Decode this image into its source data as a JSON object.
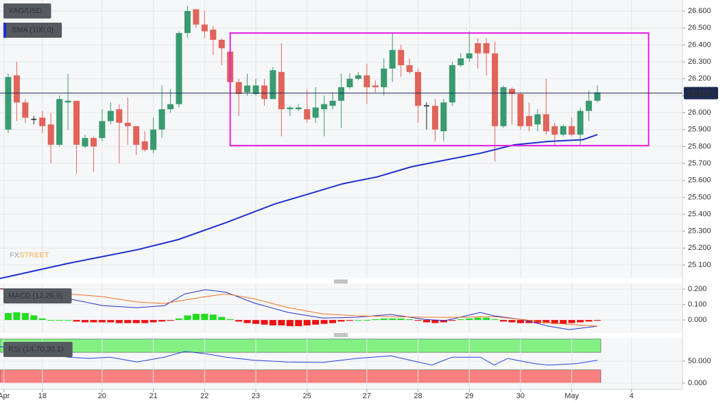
{
  "chart_data": [
    {
      "type": "candlestick",
      "series": [
        {
          "name": "XAG/USD",
          "up_color": "#3a9a70",
          "down_color": "#e0645a",
          "flat_color": "#222222",
          "open": [
            25.9,
            26.22,
            26.06,
            25.96,
            25.97,
            25.93,
            25.81,
            26.06,
            26.07,
            25.8,
            25.85,
            25.85,
            25.95,
            26.02,
            25.94,
            25.92,
            25.83,
            25.78,
            25.9,
            26.02,
            26.05,
            26.47,
            26.61,
            26.52,
            26.49,
            26.43,
            26.36,
            26.18,
            26.12,
            26.11,
            26.16,
            26.08,
            26.24,
            26.02,
            26.02,
            26.02,
            25.97,
            26.02,
            26.04,
            26.07,
            26.15,
            26.2,
            26.22,
            26.16,
            26.15,
            26.26,
            26.37,
            26.28,
            26.24,
            26.04,
            26.04,
            25.89,
            26.06,
            26.28,
            26.32,
            26.41,
            26.41,
            26.35,
            25.92,
            26.14,
            26.11,
            25.98,
            25.93,
            25.99,
            25.92,
            25.87,
            25.92,
            25.87,
            26.01,
            26.07
          ],
          "high": [
            26.23,
            26.3,
            26.08,
            25.98,
            26.01,
            26.0,
            26.1,
            26.23,
            26.07,
            25.87,
            25.86,
            26.02,
            26.06,
            26.05,
            26.09,
            25.92,
            25.89,
            25.97,
            26.16,
            26.14,
            26.48,
            26.63,
            26.61,
            26.6,
            26.51,
            26.44,
            26.37,
            26.2,
            26.23,
            26.2,
            26.2,
            26.27,
            26.41,
            26.04,
            26.05,
            26.14,
            26.15,
            26.1,
            26.12,
            26.23,
            26.23,
            26.24,
            26.29,
            26.19,
            26.32,
            26.47,
            26.4,
            26.32,
            26.26,
            26.06,
            26.08,
            26.08,
            26.3,
            26.35,
            26.48,
            26.44,
            26.44,
            26.42,
            26.16,
            26.15,
            26.12,
            26.06,
            26.02,
            26.2,
            25.94,
            25.93,
            25.97,
            26.03,
            26.13,
            26.16
          ],
          "low": [
            25.88,
            25.95,
            25.94,
            25.93,
            25.88,
            25.7,
            25.8,
            25.9,
            25.64,
            25.79,
            25.65,
            25.83,
            25.93,
            25.7,
            25.81,
            25.75,
            25.77,
            25.76,
            25.85,
            26.0,
            26.03,
            26.44,
            26.5,
            26.44,
            26.34,
            26.28,
            26.12,
            25.98,
            26.1,
            26.1,
            26.04,
            26.08,
            25.86,
            25.98,
            26.01,
            25.94,
            25.94,
            25.86,
            26.02,
            25.91,
            26.14,
            26.19,
            26.05,
            26.12,
            26.1,
            26.18,
            26.21,
            26.23,
            25.94,
            25.9,
            25.83,
            25.83,
            26.04,
            26.27,
            26.3,
            26.26,
            26.22,
            25.71,
            25.91,
            25.93,
            25.9,
            25.89,
            25.89,
            25.87,
            25.81,
            25.86,
            25.86,
            25.81,
            25.95,
            26.06
          ],
          "close": [
            26.21,
            26.06,
            25.97,
            25.96,
            25.92,
            25.81,
            26.08,
            26.07,
            25.81,
            25.85,
            25.8,
            25.95,
            26.01,
            25.94,
            25.92,
            25.81,
            25.78,
            25.9,
            26.02,
            26.05,
            26.47,
            26.6,
            26.52,
            26.48,
            26.43,
            26.38,
            26.18,
            26.11,
            26.16,
            26.16,
            26.08,
            26.25,
            26.02,
            26.03,
            26.03,
            25.96,
            26.03,
            26.05,
            26.07,
            26.15,
            26.2,
            26.22,
            26.15,
            26.15,
            26.26,
            26.37,
            26.28,
            26.24,
            26.04,
            26.04,
            25.9,
            26.06,
            26.28,
            26.32,
            26.35,
            26.35,
            26.35,
            25.92,
            26.15,
            26.11,
            25.92,
            25.92,
            25.99,
            25.89,
            25.87,
            25.92,
            25.87,
            26.01,
            26.07,
            26.12
          ]
        },
        {
          "type": "line",
          "name": "SMA (100,0)",
          "color": "#1c2fd0",
          "x": [
            -0.96,
            7.07,
            15.1,
            19.9,
            25.5,
            31.2,
            35.2,
            39.2,
            43.2,
            47.2,
            51.2,
            55.3,
            59.3,
            63.3,
            67.3,
            69
          ],
          "values": [
            25.02,
            25.11,
            25.19,
            25.25,
            25.35,
            25.46,
            25.52,
            25.58,
            25.62,
            25.68,
            25.72,
            25.76,
            25.81,
            25.83,
            25.84,
            25.87
          ]
        }
      ],
      "annotations": [
        {
          "type": "rect",
          "x": [
            26.0,
            75.0
          ],
          "y": [
            25.805,
            26.47
          ],
          "color": "#e31ee3"
        }
      ],
      "last_price": {
        "value": 26.115,
        "color": "#1e2b4f"
      },
      "watermark": [
        "FX",
        "STREET"
      ],
      "xlim": [
        -0.96,
        78.96
      ],
      "ylim": [
        25.023,
        26.665
      ],
      "yticks": [
        {
          "value": 25.1,
          "label": "25.100"
        },
        {
          "value": 25.2,
          "label": "25.200"
        },
        {
          "value": 25.3,
          "label": "25.300"
        },
        {
          "value": 25.4,
          "label": "25.400"
        },
        {
          "value": 25.5,
          "label": "25.500"
        },
        {
          "value": 25.6,
          "label": "25.600"
        },
        {
          "value": 25.7,
          "label": "25.700"
        },
        {
          "value": 25.8,
          "label": "25.800"
        },
        {
          "value": 25.9,
          "label": "25.900"
        },
        {
          "value": 26.0,
          "label": "26.000"
        },
        {
          "value": 26.1,
          "label": "26.100"
        },
        {
          "value": 26.2,
          "label": "26.200"
        },
        {
          "value": 26.3,
          "label": "26.300"
        },
        {
          "value": 26.4,
          "label": "26.400"
        },
        {
          "value": 26.5,
          "label": "26.500"
        },
        {
          "value": 26.6,
          "label": "26.600"
        }
      ]
    },
    {
      "type": "macd",
      "title": "MACD (12,26,9)",
      "histogram": {
        "up_color": "#22dd22",
        "down_color": "#ee1111",
        "values": [
          0.045,
          0.05,
          0.045,
          0.03,
          0.01,
          0.0,
          0.0,
          0.0,
          -0.01,
          -0.015,
          -0.015,
          -0.015,
          -0.015,
          -0.02,
          -0.02,
          -0.02,
          -0.02,
          -0.015,
          -0.01,
          -0.005,
          0.01,
          0.03,
          0.04,
          0.04,
          0.035,
          0.02,
          0.005,
          -0.01,
          -0.02,
          -0.025,
          -0.03,
          -0.035,
          -0.035,
          -0.04,
          -0.04,
          -0.035,
          -0.03,
          -0.025,
          -0.02,
          -0.01,
          -0.005,
          0.0,
          0.0,
          0.005,
          0.01,
          0.01,
          0.01,
          0.005,
          -0.005,
          -0.015,
          -0.02,
          -0.015,
          -0.005,
          0.005,
          0.01,
          0.015,
          0.015,
          0.005,
          -0.01,
          -0.015,
          -0.02,
          -0.02,
          -0.02,
          -0.02,
          -0.025,
          -0.025,
          -0.02,
          -0.015,
          -0.01,
          -0.005
        ]
      },
      "lines": [
        {
          "color": "#2233cc",
          "x": [
            -0.96,
            3.86,
            7.07,
            11.1,
            15.1,
            18.3,
            20.7,
            23.1,
            25.5,
            28.8,
            32.8,
            36.8,
            40.8,
            44.8,
            48.8,
            51.2,
            55.3,
            56.9,
            60.1,
            63.3,
            65.7,
            69
          ],
          "values": [
            0.204,
            0.18,
            0.138,
            0.093,
            0.08,
            0.093,
            0.169,
            0.196,
            0.18,
            0.11,
            0.049,
            0.013,
            0.018,
            0.036,
            0.004,
            -0.004,
            0.049,
            0.027,
            0.004,
            -0.04,
            -0.062,
            -0.04
          ]
        },
        {
          "color": "#f07020",
          "x": [
            -0.96,
            7.07,
            11.1,
            15.1,
            18.3,
            23.1,
            25.5,
            28.8,
            32.8,
            36.8,
            40.8,
            44.8,
            48.8,
            52.9,
            56.9,
            60.1,
            63.3,
            66.5,
            69
          ],
          "values": [
            0.2,
            0.169,
            0.151,
            0.116,
            0.107,
            0.151,
            0.169,
            0.138,
            0.08,
            0.04,
            0.027,
            0.022,
            0.018,
            0.018,
            0.022,
            0.004,
            -0.018,
            -0.031,
            -0.04
          ]
        }
      ],
      "xlim": [
        -0.96,
        78.96
      ],
      "ylim": [
        -0.084,
        0.236
      ],
      "yticks": [
        {
          "value": 0,
          "label": "0.000"
        },
        {
          "value": 0.1,
          "label": "0.100"
        },
        {
          "value": 0.2,
          "label": "0.200"
        }
      ]
    },
    {
      "type": "rsi",
      "title": "RSI (14,70,30,1)",
      "bands": [
        {
          "range": [
            70,
            100
          ],
          "color": "#84f084"
        },
        {
          "range": [
            0,
            30
          ],
          "color": "#fa7f7f"
        }
      ],
      "line": {
        "color": "#2244dd",
        "x": [
          -0.96,
          1.45,
          3.86,
          7.07,
          9.48,
          11.9,
          15.1,
          18.3,
          20.7,
          23.1,
          25.5,
          28.8,
          32.8,
          36.8,
          40.8,
          44.8,
          48.0,
          49.6,
          52.0,
          55.3,
          56.9,
          58.5,
          61.7,
          63.3,
          66.5,
          69
        ],
        "values": [
          83,
          75,
          67,
          59,
          56,
          59,
          48,
          59,
          72,
          67,
          59,
          52,
          48,
          47,
          56,
          62,
          48,
          41,
          59,
          59,
          41,
          56,
          44,
          41,
          44,
          52
        ]
      },
      "xlim": [
        -0.96,
        78.96
      ],
      "ylim": [
        -14,
        103
      ],
      "yticks": [
        {
          "value": 0,
          "label": "0.000"
        },
        {
          "value": 50,
          "label": "50.000"
        }
      ],
      "xticks": [
        {
          "value": -0.5,
          "label": "Apr"
        },
        {
          "value": 4,
          "label": "18"
        },
        {
          "value": 11,
          "label": "20"
        },
        {
          "value": 17,
          "label": "21"
        },
        {
          "value": 23,
          "label": "22"
        },
        {
          "value": 29,
          "label": "23"
        },
        {
          "value": 35,
          "label": "25"
        },
        {
          "value": 42,
          "label": "27"
        },
        {
          "value": 48,
          "label": "28"
        },
        {
          "value": 54,
          "label": "29"
        },
        {
          "value": 60,
          "label": "30"
        },
        {
          "value": 66,
          "label": "May"
        },
        {
          "value": 73,
          "label": "4"
        }
      ]
    }
  ]
}
